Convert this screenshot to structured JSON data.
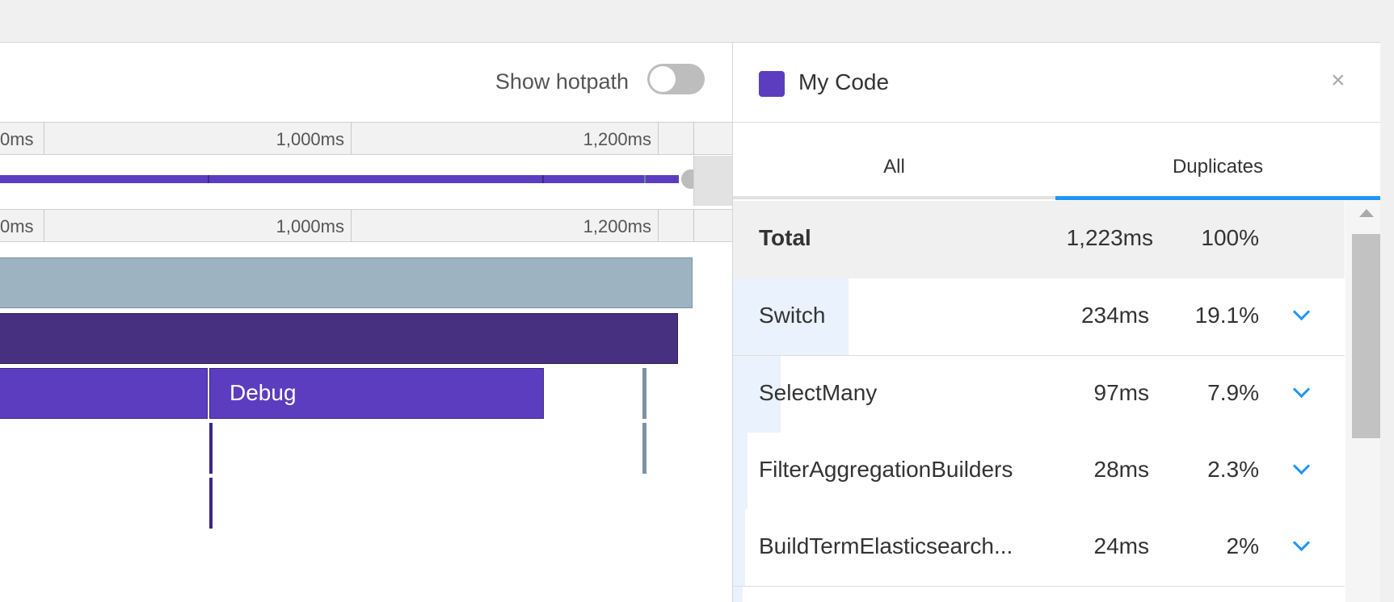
{
  "left_pane": {
    "hotpath_label": "Show hotpath",
    "hotpath_enabled": false,
    "ruler_ticks": [
      "0ms",
      "1,000ms",
      "1,200ms"
    ],
    "flame_label": "Debug"
  },
  "right_pane": {
    "title": "My Code",
    "swatch_color": "#5c3dbf",
    "close_icon": "×",
    "tabs": [
      {
        "label": "All",
        "active": false
      },
      {
        "label": "Duplicates",
        "active": true
      }
    ],
    "total": {
      "name": "Total",
      "time": "1,223ms",
      "percent": "100%"
    },
    "rows": [
      {
        "name": "Switch",
        "time": "234ms",
        "percent": "19.1%"
      },
      {
        "name": "SelectMany",
        "time": "97ms",
        "percent": "7.9%"
      },
      {
        "name": "FilterAggregationBuilders",
        "time": "28ms",
        "percent": "2.3%"
      },
      {
        "name": "BuildTermElasticsearch...",
        "time": "24ms",
        "percent": "2%"
      }
    ]
  },
  "colors": {
    "accent": "#2196f3",
    "my_code": "#5c3dbf",
    "flame_top": "#9db3c2",
    "flame_dark": "#46307f"
  }
}
